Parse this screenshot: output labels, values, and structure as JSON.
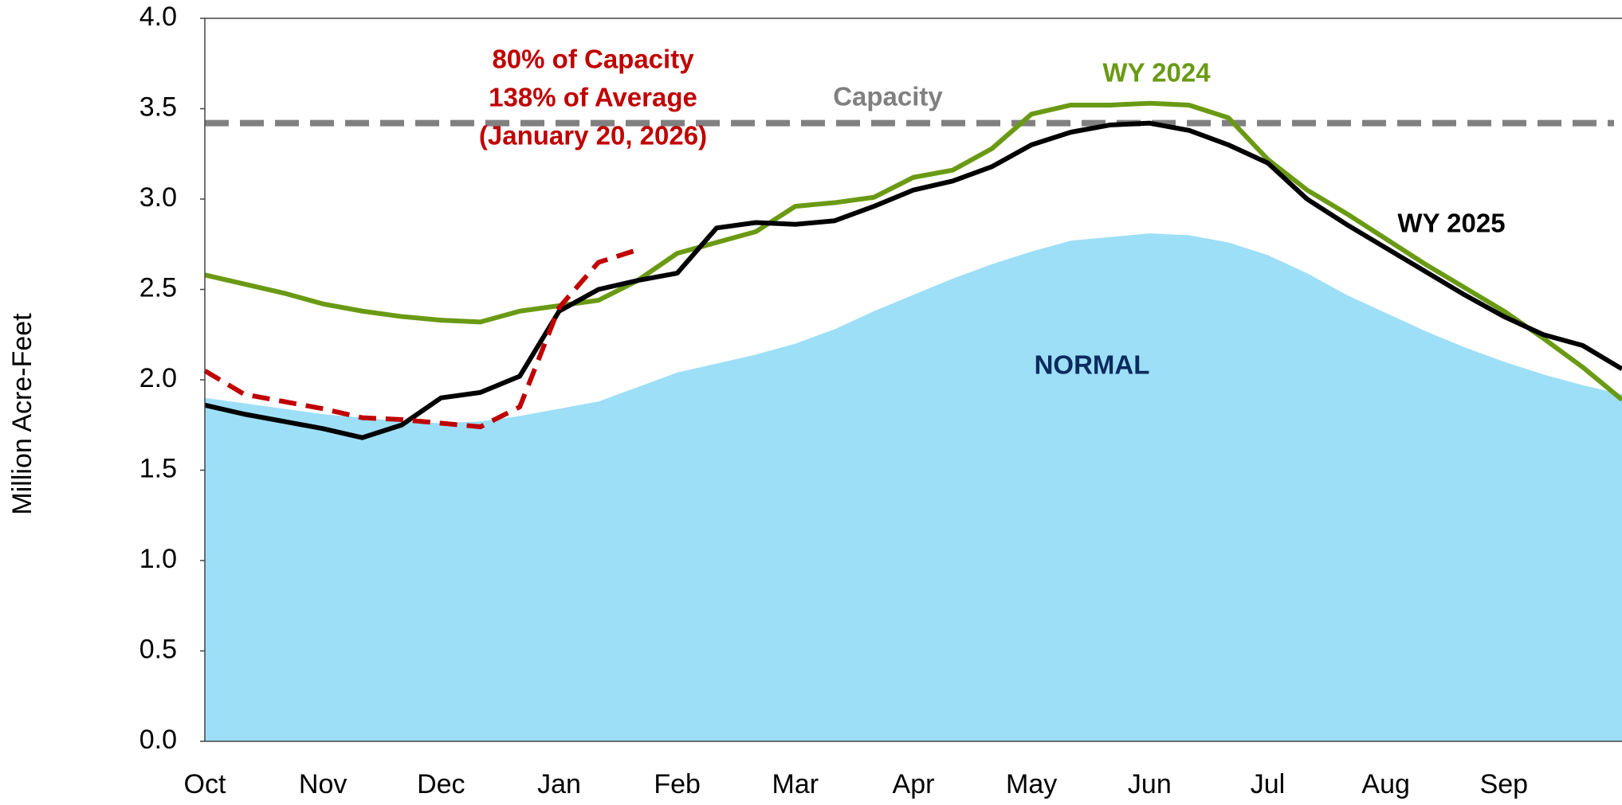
{
  "chart_data": {
    "type": "line",
    "y_label": "Million Acre-Feet",
    "categories": [
      "Oct",
      null,
      null,
      "Nov",
      null,
      null,
      "Dec",
      null,
      null,
      "Jan",
      null,
      null,
      "Feb",
      null,
      null,
      "Mar",
      null,
      null,
      "Apr",
      null,
      null,
      "May",
      null,
      null,
      "Jun",
      null,
      null,
      "Jul",
      null,
      null,
      "Aug",
      null,
      null,
      "Sep",
      null,
      null,
      null
    ],
    "ylim": [
      0,
      4
    ],
    "yticks": [
      {
        "value": 0,
        "label": "0.0"
      },
      0.5,
      {
        "value": 1,
        "label": "1.0"
      },
      1.5,
      {
        "value": 2,
        "label": "2.0"
      },
      2.5,
      {
        "value": 3,
        "label": "3.0"
      },
      3.5,
      {
        "value": 4,
        "label": "4.0"
      }
    ],
    "capacity": {
      "name": "Capacity",
      "value": 3.42,
      "color": "#808080"
    },
    "series": [
      {
        "name": "NORMAL",
        "style": "area",
        "color": "#9ddff7",
        "label_color": "#0b2a5e",
        "values": [
          1.9,
          1.87,
          1.84,
          1.81,
          1.79,
          1.77,
          1.76,
          1.77,
          1.8,
          1.84,
          1.88,
          1.96,
          2.04,
          2.09,
          2.14,
          2.2,
          2.28,
          2.38,
          2.47,
          2.56,
          2.64,
          2.71,
          2.77,
          2.79,
          2.81,
          2.8,
          2.76,
          2.69,
          2.59,
          2.47,
          2.37,
          2.27,
          2.18,
          2.1,
          2.03,
          1.97,
          1.92
        ]
      },
      {
        "name": "WY 2024",
        "style": "line",
        "color": "#6a9a13",
        "values": [
          2.58,
          2.53,
          2.48,
          2.42,
          2.38,
          2.35,
          2.33,
          2.32,
          2.38,
          2.41,
          2.44,
          2.55,
          2.7,
          2.76,
          2.82,
          2.96,
          2.98,
          3.01,
          3.12,
          3.16,
          3.28,
          3.47,
          3.52,
          3.52,
          3.53,
          3.52,
          3.45,
          3.22,
          3.05,
          2.92,
          2.78,
          2.64,
          2.51,
          2.38,
          2.23,
          2.07,
          1.89
        ]
      },
      {
        "name": "WY 2025",
        "style": "line",
        "color": "#000000",
        "values": [
          1.86,
          1.81,
          1.77,
          1.73,
          1.68,
          1.75,
          1.9,
          1.93,
          2.02,
          2.38,
          2.5,
          2.55,
          2.59,
          2.84,
          2.87,
          2.86,
          2.88,
          2.96,
          3.05,
          3.1,
          3.18,
          3.3,
          3.37,
          3.41,
          3.42,
          3.38,
          3.3,
          3.2,
          3.0,
          2.86,
          2.73,
          2.6,
          2.47,
          2.35,
          2.25,
          2.19,
          2.06
        ]
      },
      {
        "style": "dashed",
        "color": "#c00000",
        "values": [
          2.05,
          1.92,
          1.88,
          1.84,
          1.79,
          1.78,
          1.76,
          1.74,
          1.85,
          2.4,
          2.65,
          2.72,
          null,
          null,
          null,
          null,
          null,
          null,
          null,
          null,
          null,
          null,
          null,
          null,
          null,
          null,
          null,
          null,
          null,
          null,
          null,
          null,
          null,
          null,
          null,
          null,
          null
        ]
      }
    ],
    "annotations": [
      "80% of Capacity",
      "138% of Average",
      "(January 20, 2026)"
    ]
  }
}
